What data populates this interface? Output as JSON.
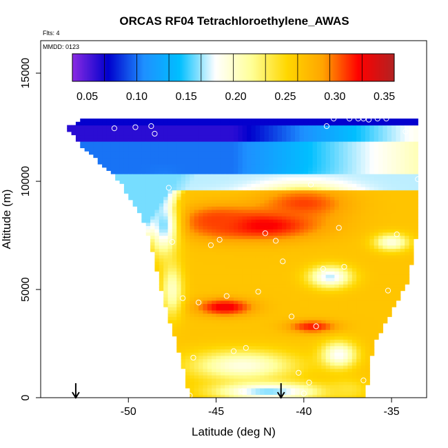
{
  "chart_data": {
    "type": "heatmap",
    "title": "ORCAS RF04 Tetrachloroethylene_AWAS",
    "annotations": {
      "flights": "Flts: 4",
      "date": "MMDD: 0123"
    },
    "xlabel": "Latitude (deg N)",
    "ylabel": "Altitude (m)",
    "xlim": [
      -55,
      -33
    ],
    "ylim": [
      0,
      16500
    ],
    "x_ticks": [
      -50,
      -45,
      -40,
      -35
    ],
    "x_tick_labels": [
      "-50",
      "-45",
      "-40",
      "-35"
    ],
    "y_ticks": [
      0,
      5000,
      10000,
      15000
    ],
    "y_tick_labels": [
      "0",
      "5000",
      "10000",
      "15000"
    ],
    "colorbar": {
      "min": 0.035,
      "max": 0.36,
      "ticks": [
        0.05,
        0.1,
        0.15,
        0.2,
        0.25,
        0.3,
        0.35
      ],
      "tick_labels": [
        "0.05",
        "0.10",
        "0.15",
        "0.20",
        "0.25",
        "0.30",
        "0.35"
      ],
      "colors": [
        "#8a2be2",
        "#0000cd",
        "#1e90ff",
        "#00bfff",
        "#ffffff",
        "#ffff99",
        "#ffd700",
        "#ffa500",
        "#ff0000",
        "#b22222"
      ]
    },
    "domain_outline": [
      [
        -53.5,
        12500
      ],
      [
        -52.5,
        12900
      ],
      [
        -38.5,
        12900
      ],
      [
        -33.5,
        12900
      ],
      [
        -33.5,
        8000
      ],
      [
        -34.0,
        5500
      ],
      [
        -36.0,
        2500
      ],
      [
        -36.5,
        0
      ],
      [
        -46.5,
        0
      ],
      [
        -47.0,
        1800
      ],
      [
        -48.0,
        4500
      ],
      [
        -49.0,
        8000
      ],
      [
        -50.5,
        10000
      ],
      [
        -52.5,
        11500
      ]
    ],
    "field_features": [
      {
        "lat": -42.5,
        "alt": 8000,
        "value": 0.33,
        "sx": 3.5,
        "sy": 700
      },
      {
        "lat": -45.0,
        "alt": 8200,
        "value": 0.31,
        "sx": 2.0,
        "sy": 700
      },
      {
        "lat": -40.0,
        "alt": 9000,
        "value": 0.31,
        "sx": 2.5,
        "sy": 700
      },
      {
        "lat": -44.5,
        "alt": 4200,
        "value": 0.33,
        "sx": 1.6,
        "sy": 400
      },
      {
        "lat": -39.5,
        "alt": 3300,
        "value": 0.32,
        "sx": 1.4,
        "sy": 300
      },
      {
        "lat": -38.5,
        "alt": 5600,
        "value": 0.17,
        "sx": 1.2,
        "sy": 500
      },
      {
        "lat": -35.0,
        "alt": 7200,
        "value": 0.19,
        "sx": 1.0,
        "sy": 400
      },
      {
        "lat": -43.5,
        "alt": 1500,
        "value": 0.19,
        "sx": 3.0,
        "sy": 700
      },
      {
        "lat": -42.0,
        "alt": 300,
        "value": 0.16,
        "sx": 3.0,
        "sy": 400
      },
      {
        "lat": -37.5,
        "alt": 400,
        "value": 0.24,
        "sx": 1.2,
        "sy": 500
      },
      {
        "lat": -48.0,
        "alt": 8000,
        "value": 0.16,
        "sx": 0.8,
        "sy": 1300
      },
      {
        "lat": -47.5,
        "alt": 5000,
        "value": 0.2,
        "sx": 0.6,
        "sy": 1200
      },
      {
        "lat": -38.0,
        "alt": 2000,
        "value": 0.18,
        "sx": 1.0,
        "sy": 600
      }
    ],
    "samples": [
      {
        "lat": -50.8,
        "alt": 12450
      },
      {
        "lat": -49.6,
        "alt": 12500
      },
      {
        "lat": -48.7,
        "alt": 12550
      },
      {
        "lat": -48.5,
        "alt": 12200
      },
      {
        "lat": -47.7,
        "alt": 9700
      },
      {
        "lat": -47.5,
        "alt": 7200
      },
      {
        "lat": -46.9,
        "alt": 4600
      },
      {
        "lat": -46.0,
        "alt": 4400
      },
      {
        "lat": -45.3,
        "alt": 7050
      },
      {
        "lat": -44.8,
        "alt": 7300
      },
      {
        "lat": -44.4,
        "alt": 4700
      },
      {
        "lat": -44.0,
        "alt": 2150
      },
      {
        "lat": -43.3,
        "alt": 2300
      },
      {
        "lat": -42.6,
        "alt": 4900
      },
      {
        "lat": -42.2,
        "alt": 7600
      },
      {
        "lat": -41.6,
        "alt": 7250
      },
      {
        "lat": -41.2,
        "alt": 6300
      },
      {
        "lat": -40.7,
        "alt": 3750
      },
      {
        "lat": -40.3,
        "alt": 1150
      },
      {
        "lat": -40.0,
        "alt": 200
      },
      {
        "lat": -39.7,
        "alt": 700
      },
      {
        "lat": -39.6,
        "alt": 9850
      },
      {
        "lat": -39.3,
        "alt": 3300
      },
      {
        "lat": -38.9,
        "alt": 5950
      },
      {
        "lat": -38.7,
        "alt": 12550
      },
      {
        "lat": -38.3,
        "alt": 12900
      },
      {
        "lat": -38.0,
        "alt": 7850
      },
      {
        "lat": -37.7,
        "alt": 6050
      },
      {
        "lat": -37.4,
        "alt": 12900
      },
      {
        "lat": -36.9,
        "alt": 12900
      },
      {
        "lat": -36.6,
        "alt": 12900
      },
      {
        "lat": -36.6,
        "alt": 800
      },
      {
        "lat": -36.3,
        "alt": 12850
      },
      {
        "lat": -35.8,
        "alt": 12900
      },
      {
        "lat": -35.3,
        "alt": 12900
      },
      {
        "lat": -35.2,
        "alt": 4950
      },
      {
        "lat": -34.7,
        "alt": 7550
      },
      {
        "lat": -34.2,
        "alt": 12300
      },
      {
        "lat": -33.5,
        "alt": 10100
      },
      {
        "lat": -46.3,
        "alt": 1850
      },
      {
        "lat": -46.5,
        "alt": 100
      },
      {
        "lat": -43.5,
        "alt": 300
      }
    ],
    "flight_markers": [
      {
        "lat": -53.0
      },
      {
        "lat": -41.3
      }
    ]
  }
}
